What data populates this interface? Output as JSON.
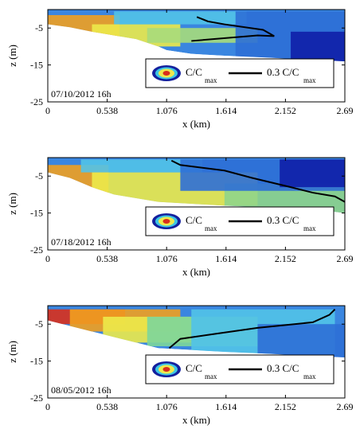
{
  "chart_data": [
    {
      "type": "heatmap",
      "date_label": "07/10/2012 16h",
      "xlabel": "x (km)",
      "ylabel": "z (m)",
      "xlim": [
        0,
        2.69
      ],
      "ylim": [
        -25,
        0
      ],
      "x_ticks": [
        "0",
        "0.538",
        "1.076",
        "1.614",
        "2.152",
        "2.69"
      ],
      "y_ticks": [
        "-5",
        "-15",
        "-25"
      ],
      "legend": {
        "left_label": "C/C",
        "left_sub": "max",
        "right_label": "0.3 C/C",
        "right_sub": "max",
        "placement": "lower-right"
      },
      "bottom_profile": [
        [
          0,
          -4
        ],
        [
          0.2,
          -4.8
        ],
        [
          0.4,
          -6
        ],
        [
          0.6,
          -7
        ],
        [
          0.8,
          -8
        ],
        [
          1.0,
          -10
        ],
        [
          1.076,
          -11
        ],
        [
          1.3,
          -12
        ],
        [
          1.6,
          -12.5
        ],
        [
          2.0,
          -13
        ],
        [
          2.3,
          -13.5
        ],
        [
          2.69,
          -14
        ]
      ],
      "bands": [
        {
          "color": "#f1a020",
          "x0": 0.0,
          "x1": 0.65,
          "z0": -1.5,
          "z1": -8
        },
        {
          "color": "#ecea4a",
          "x0": 0.4,
          "x1": 1.2,
          "z0": -4,
          "z1": -10
        },
        {
          "color": "#a7dc7b",
          "x0": 0.9,
          "x1": 1.9,
          "z0": -5,
          "z1": -9
        },
        {
          "color": "#52c3e8",
          "x0": 0.6,
          "x1": 1.8,
          "z0": -0.5,
          "z1": -4
        },
        {
          "color": "#2d6fd6",
          "x0": 1.7,
          "x1": 2.69,
          "z0": -0.5,
          "z1": -14
        },
        {
          "color": "#0f1fa8",
          "x0": 2.2,
          "x1": 2.69,
          "z0": -6,
          "z1": -14
        }
      ],
      "contour": [
        [
          1.3,
          -8.5
        ],
        [
          1.9,
          -7
        ],
        [
          2.05,
          -7.2
        ],
        [
          1.95,
          -5.5
        ],
        [
          1.6,
          -4
        ],
        [
          1.45,
          -3.2
        ],
        [
          1.35,
          -2
        ]
      ]
    },
    {
      "type": "heatmap",
      "date_label": "07/18/2012 16h",
      "xlabel": "x (km)",
      "ylabel": "z (m)",
      "xlim": [
        0,
        2.69
      ],
      "ylim": [
        -25,
        0
      ],
      "x_ticks": [
        "0",
        "0.538",
        "1.076",
        "1.614",
        "2.152",
        "2.69"
      ],
      "y_ticks": [
        "-5",
        "-15",
        "-25"
      ],
      "legend": {
        "left_label": "C/C",
        "left_sub": "max",
        "right_label": "0.3 C/C",
        "right_sub": "max",
        "placement": "lower-right"
      },
      "bottom_profile": [
        [
          0,
          -4
        ],
        [
          0.2,
          -5.5
        ],
        [
          0.4,
          -8
        ],
        [
          0.6,
          -10
        ],
        [
          0.8,
          -11
        ],
        [
          1.0,
          -12
        ],
        [
          1.3,
          -12.5
        ],
        [
          1.6,
          -13
        ],
        [
          2.0,
          -13.5
        ],
        [
          2.4,
          -14
        ],
        [
          2.69,
          -15
        ]
      ],
      "bands": [
        {
          "color": "#f1a020",
          "x0": 0.0,
          "x1": 0.55,
          "z0": -2,
          "z1": -10
        },
        {
          "color": "#ecea4a",
          "x0": 0.4,
          "x1": 1.9,
          "z0": -4,
          "z1": -13
        },
        {
          "color": "#8fd58a",
          "x0": 1.6,
          "x1": 2.69,
          "z0": -7,
          "z1": -15
        },
        {
          "color": "#52c3e8",
          "x0": 0.3,
          "x1": 1.4,
          "z0": -0.5,
          "z1": -4
        },
        {
          "color": "#2d6fd6",
          "x0": 1.2,
          "x1": 2.69,
          "z0": -0.5,
          "z1": -9
        },
        {
          "color": "#0f1fa8",
          "x0": 2.1,
          "x1": 2.69,
          "z0": -0.5,
          "z1": -8
        }
      ],
      "contour": [
        [
          1.12,
          -0.8
        ],
        [
          1.2,
          -2
        ],
        [
          1.6,
          -3.5
        ],
        [
          1.85,
          -5.5
        ],
        [
          2.2,
          -8
        ],
        [
          2.4,
          -9.5
        ],
        [
          2.6,
          -10.5
        ],
        [
          2.69,
          -12
        ]
      ]
    },
    {
      "type": "heatmap",
      "date_label": "08/05/2012 16h",
      "xlabel": "x (km)",
      "ylabel": "z (m)",
      "xlim": [
        0,
        2.69
      ],
      "ylim": [
        -25,
        0
      ],
      "x_ticks": [
        "0",
        "0.538",
        "1.076",
        "1.614",
        "2.152",
        "2.69"
      ],
      "y_ticks": [
        "-5",
        "-15",
        "-25"
      ],
      "legend": {
        "left_label": "C/C",
        "left_sub": "max",
        "right_label": "0.3 C/C",
        "right_sub": "max",
        "placement": "lower-right"
      },
      "bottom_profile": [
        [
          0,
          -4
        ],
        [
          0.2,
          -5.5
        ],
        [
          0.4,
          -7
        ],
        [
          0.6,
          -8.5
        ],
        [
          0.8,
          -10
        ],
        [
          1.0,
          -11.5
        ],
        [
          1.3,
          -12
        ],
        [
          1.6,
          -12.5
        ],
        [
          2.0,
          -13
        ],
        [
          2.3,
          -13.5
        ],
        [
          2.69,
          -14
        ]
      ],
      "bands": [
        {
          "color": "#d9301c",
          "x0": 0.0,
          "x1": 0.7,
          "z0": -1,
          "z1": -5
        },
        {
          "color": "#f1a020",
          "x0": 0.2,
          "x1": 1.2,
          "z0": -1,
          "z1": -7
        },
        {
          "color": "#ecea4a",
          "x0": 0.5,
          "x1": 1.3,
          "z0": -3,
          "z1": -10
        },
        {
          "color": "#7dd69a",
          "x0": 0.9,
          "x1": 1.9,
          "z0": -3,
          "z1": -11
        },
        {
          "color": "#52c3e8",
          "x0": 1.3,
          "x1": 2.6,
          "z0": -1,
          "z1": -13
        },
        {
          "color": "#2d6fd6",
          "x0": 1.9,
          "x1": 2.69,
          "z0": -5,
          "z1": -14
        }
      ],
      "contour": [
        [
          1.1,
          -11.5
        ],
        [
          1.2,
          -9
        ],
        [
          1.55,
          -7.5
        ],
        [
          1.9,
          -6
        ],
        [
          2.4,
          -4.5
        ],
        [
          2.55,
          -2.5
        ],
        [
          2.6,
          -1
        ]
      ]
    }
  ]
}
